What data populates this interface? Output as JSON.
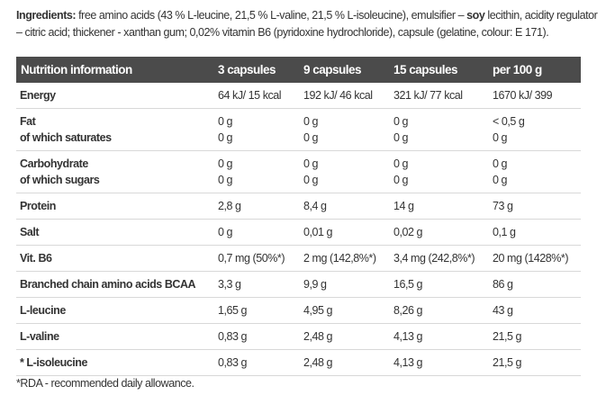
{
  "ingredients": {
    "label": "Ingredients:",
    "part1": " free amino acids (43 % L-leucine, 21,5 % L-valine, 21,5 % L-isoleucine), emulsifier – ",
    "soy": "soy",
    "part2": " lecithin, acidity regulator – citric acid; thickener - xanthan gum;  0,02% vitamin B6 (pyridoxine hydrochloride), capsule (gelatine, colour: E 171)."
  },
  "table": {
    "headers": [
      "Nutrition information",
      "3 capsules",
      "9 capsules",
      "15 capsules",
      "per 100 g"
    ],
    "rows": [
      {
        "label": [
          "Energy"
        ],
        "values": [
          [
            "64 kJ/ 15 kcal"
          ],
          [
            "192 kJ/ 46 kcal"
          ],
          [
            "321 kJ/ 77 kcal"
          ],
          [
            "1670 kJ/ 399"
          ]
        ]
      },
      {
        "label": [
          "Fat",
          "of which saturates"
        ],
        "values": [
          [
            "0 g",
            "0 g"
          ],
          [
            "0 g",
            "0 g"
          ],
          [
            "0 g",
            "0 g"
          ],
          [
            "< 0,5 g",
            "0 g"
          ]
        ]
      },
      {
        "label": [
          "Carbohydrate",
          "of which sugars"
        ],
        "values": [
          [
            "0 g",
            "0 g"
          ],
          [
            "0 g",
            "0 g"
          ],
          [
            "0 g",
            "0 g"
          ],
          [
            "0 g",
            "0 g"
          ]
        ]
      },
      {
        "label": [
          "Protein"
        ],
        "values": [
          [
            "2,8 g"
          ],
          [
            "8,4 g"
          ],
          [
            "14 g"
          ],
          [
            "73 g"
          ]
        ]
      },
      {
        "label": [
          "Salt"
        ],
        "values": [
          [
            "0 g"
          ],
          [
            "0,01 g"
          ],
          [
            "0,02 g"
          ],
          [
            "0,1 g"
          ]
        ]
      },
      {
        "label": [
          "Vit. B6"
        ],
        "values": [
          [
            "0,7 mg (50%*)"
          ],
          [
            "2 mg (142,8%*)"
          ],
          [
            "3,4 mg (242,8%*)"
          ],
          [
            "20 mg (1428%*)"
          ]
        ]
      },
      {
        "label": [
          "Branched chain amino acids BCAA"
        ],
        "values": [
          [
            "3,3 g"
          ],
          [
            "9,9 g"
          ],
          [
            "16,5 g"
          ],
          [
            "86 g"
          ]
        ]
      },
      {
        "label": [
          "L-leucine"
        ],
        "values": [
          [
            "1,65 g"
          ],
          [
            "4,95 g"
          ],
          [
            "8,26 g"
          ],
          [
            "43 g"
          ]
        ]
      },
      {
        "label": [
          "L-valine"
        ],
        "values": [
          [
            "0,83 g"
          ],
          [
            "2,48 g"
          ],
          [
            "4,13 g"
          ],
          [
            "21,5 g"
          ]
        ]
      },
      {
        "label": [
          "* L-isoleucine"
        ],
        "values": [
          [
            "0,83 g"
          ],
          [
            "2,48 g"
          ],
          [
            "4,13 g"
          ],
          [
            "21,5 g"
          ]
        ]
      }
    ]
  },
  "footnote": "*RDA - recommended daily allowance.",
  "colors": {
    "header_bg": "#4b4b4b",
    "header_text": "#ffffff",
    "text": "#333333",
    "row_border": "#d8d8d8"
  }
}
